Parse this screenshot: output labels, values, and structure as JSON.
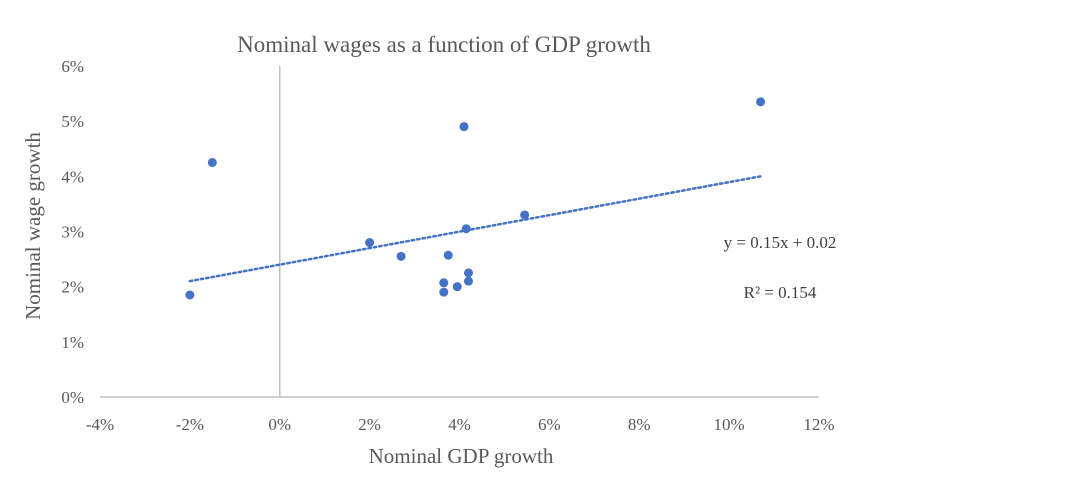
{
  "chart_data": {
    "type": "scatter",
    "title": "Nominal wages as a function of GDP growth",
    "xlabel": "Nominal GDP growth",
    "ylabel": "Nominal wage growth",
    "xlim": [
      -4,
      12
    ],
    "ylim": [
      0,
      6
    ],
    "x_ticks": [
      -4,
      -2,
      0,
      2,
      4,
      6,
      8,
      10,
      12
    ],
    "y_ticks": [
      0,
      1,
      2,
      3,
      4,
      5,
      6
    ],
    "x_tick_labels": [
      "-4%",
      "-2%",
      "0%",
      "2%",
      "4%",
      "6%",
      "8%",
      "10%",
      "12%"
    ],
    "y_tick_labels": [
      "0%",
      "1%",
      "2%",
      "3%",
      "4%",
      "5%",
      "6%"
    ],
    "series": [
      {
        "name": "Nominal wage growth",
        "color": "#4472C4",
        "points": [
          {
            "x": -2.0,
            "y": 1.85
          },
          {
            "x": -1.5,
            "y": 4.25
          },
          {
            "x": 2.0,
            "y": 2.8
          },
          {
            "x": 2.7,
            "y": 2.55
          },
          {
            "x": 3.65,
            "y": 2.07
          },
          {
            "x": 3.65,
            "y": 1.9
          },
          {
            "x": 3.75,
            "y": 2.57
          },
          {
            "x": 3.95,
            "y": 2.0
          },
          {
            "x": 4.1,
            "y": 4.9
          },
          {
            "x": 4.15,
            "y": 3.05
          },
          {
            "x": 4.2,
            "y": 2.25
          },
          {
            "x": 4.2,
            "y": 2.1
          },
          {
            "x": 5.45,
            "y": 3.3
          },
          {
            "x": 10.7,
            "y": 5.35
          }
        ]
      }
    ],
    "trendline": {
      "type": "linear",
      "x_range": [
        -2.0,
        10.7
      ],
      "y_start": 2.1,
      "y_end": 4.0,
      "color": "#4472C4",
      "equation": "y = 0.15x + 0.02",
      "r_squared": "R² = 0.154"
    },
    "colors": {
      "axis": "#BFBFBF",
      "text": "#595959"
    }
  }
}
